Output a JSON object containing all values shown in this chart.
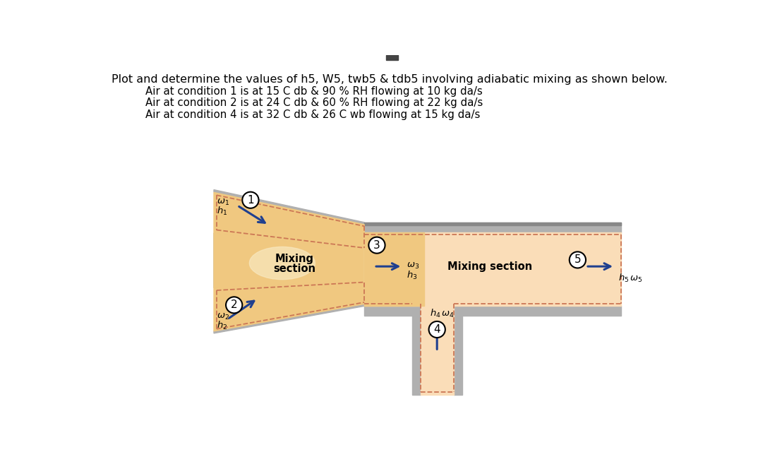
{
  "title_line1": "Plot and determine the values of h5, W5, twb5 & tdb5 involving adiabatic mixing as shown below.",
  "title_line2": "Air at condition 1 is at 15 C db & 90 % RH flowing at 10 kg da/s",
  "title_line3": "Air at condition 2 is at 24 C db & 60 % RH flowing at 22 kg da/s",
  "title_line4": "Air at condition 4 is at 32 C db & 26 C wb flowing at 15 kg da/s",
  "fill_color_dark": "#F0C880",
  "fill_color_light": "#FADDB8",
  "gray_color": "#B0B0B0",
  "gray_dark": "#888888",
  "dashed_color": "#CC7755",
  "arrow_color": "#1F3F8F",
  "background": "#FFFFFF"
}
